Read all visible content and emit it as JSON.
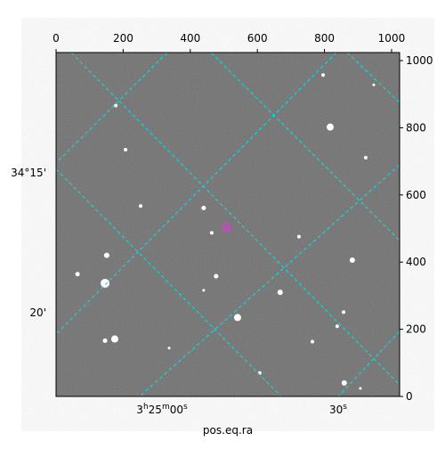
{
  "chart_data": {
    "type": "image",
    "xlim": [
      0,
      1024
    ],
    "ylim": [
      0,
      1024
    ],
    "xticks": [
      0,
      200,
      400,
      600,
      800,
      1000
    ],
    "yticks": [
      0,
      200,
      400,
      600,
      800,
      1000
    ],
    "ra_ticks": [
      "3h25m00s",
      "30s"
    ],
    "dec_ticks": [
      "34°15'",
      "20'"
    ],
    "xlabel": "pos.eq.ra",
    "stars": {
      "color": "#ffffff",
      "x": [
        817,
        146,
        541,
        175,
        151,
        668,
        883,
        859,
        440,
        464,
        724,
        477,
        64,
        857,
        838,
        764,
        252,
        207,
        178,
        796,
        947,
        923,
        440,
        146,
        337,
        607,
        907
      ],
      "y": [
        802,
        337,
        235,
        171,
        420,
        310,
        406,
        40,
        561,
        487,
        476,
        358,
        364,
        251,
        209,
        163,
        567,
        735,
        866,
        957,
        928,
        711,
        316,
        166,
        144,
        70,
        24
      ],
      "sizes": [
        4,
        5,
        4,
        4,
        3,
        3,
        3,
        3,
        2.5,
        2,
        2,
        2.5,
        2.5,
        2,
        2,
        2,
        2,
        2,
        2,
        2,
        1.5,
        2,
        1.5,
        2.5,
        1.5,
        2,
        1.5
      ]
    },
    "marker": {
      "color": "#cc44cc",
      "x": 507,
      "y": 503
    }
  }
}
